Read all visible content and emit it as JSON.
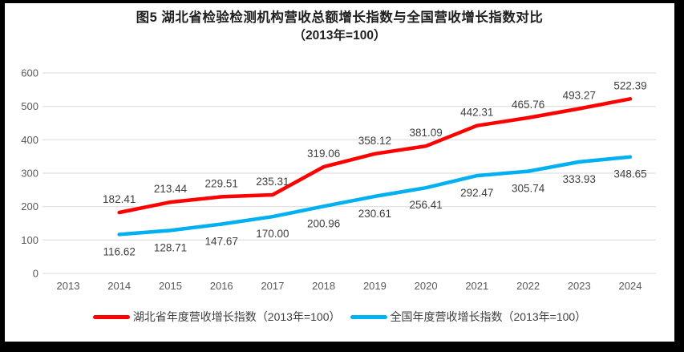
{
  "figure": {
    "title_line1": "图5 湖北省检验检测机构营收总额增长指数与全国营收增长指数对比",
    "title_line2": "（2013年=100）"
  },
  "colors": {
    "hubei_red": "#FF0000",
    "national_blue": "#00B0F0",
    "gridline": "#D9D9D9",
    "axis_text": "#595959",
    "data_label": "#3F3F3F",
    "frame": "#000000"
  },
  "chart_data": {
    "type": "line",
    "title": "图5 湖北省检验检测机构营收总额增长指数与全国营收增长指数对比（2013年=100）",
    "categories": [
      "2013",
      "2014",
      "2015",
      "2016",
      "2017",
      "2018",
      "2019",
      "2020",
      "2021",
      "2022",
      "2023",
      "2024"
    ],
    "xlabel": "",
    "ylabel": "",
    "ylim": [
      0,
      600
    ],
    "ytick_interval": 100,
    "yticks": [
      0,
      100,
      200,
      300,
      400,
      500,
      600
    ],
    "grid": true,
    "legend_position": "bottom",
    "series": [
      {
        "name": "湖北省年度营收增长指数（2013年=100）",
        "color": "#FF0000",
        "label_position": "above",
        "values": [
          null,
          182.41,
          213.44,
          229.51,
          235.31,
          319.06,
          358.12,
          381.09,
          442.31,
          465.76,
          493.27,
          522.39
        ]
      },
      {
        "name": "全国年度营收增长指数（2013年=100）",
        "color": "#00B0F0",
        "label_position": "below",
        "values": [
          null,
          116.62,
          128.71,
          147.67,
          170.0,
          200.96,
          230.61,
          256.41,
          292.47,
          305.74,
          333.93,
          348.65
        ]
      }
    ]
  }
}
